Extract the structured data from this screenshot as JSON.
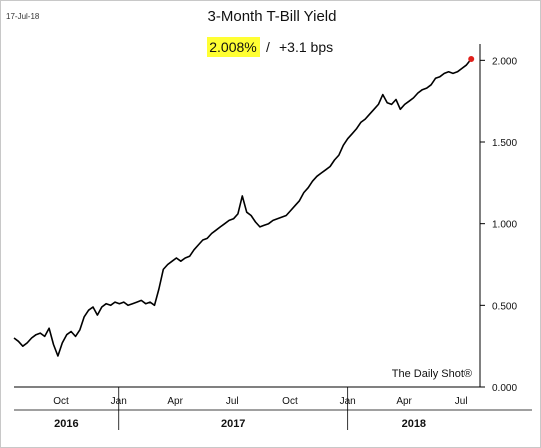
{
  "header": {
    "date": "17-Jul-18",
    "title": "3-Month T-Bill Yield",
    "last_value": "2.008%",
    "separator": "/",
    "change": "+3.1 bps",
    "highlight_color": "#ffff33"
  },
  "source": "The Daily Shot®",
  "chart_data": {
    "type": "line",
    "title": "3-Month T-Bill Yield",
    "xlabel": "",
    "ylabel": "",
    "ylim": [
      0,
      2.1
    ],
    "yticks": [
      0,
      0.5,
      1.0,
      1.5,
      2.0
    ],
    "ytick_labels": [
      "0.000",
      "0.500",
      "1.000",
      "1.500",
      "2.000"
    ],
    "xlim": [
      "2016-07-18",
      "2018-07-31"
    ],
    "xticks": [
      {
        "date": "2016-10-01",
        "label": "Oct"
      },
      {
        "date": "2017-01-01",
        "label": "Jan"
      },
      {
        "date": "2017-04-01",
        "label": "Apr"
      },
      {
        "date": "2017-07-01",
        "label": "Jul"
      },
      {
        "date": "2017-10-01",
        "label": "Oct"
      },
      {
        "date": "2018-01-01",
        "label": "Jan"
      },
      {
        "date": "2018-04-01",
        "label": "Apr"
      },
      {
        "date": "2018-07-01",
        "label": "Jul"
      }
    ],
    "year_labels": [
      {
        "label": "2016",
        "from": "2016-07-18",
        "to": "2017-01-01"
      },
      {
        "label": "2017",
        "from": "2017-01-01",
        "to": "2018-01-01"
      },
      {
        "label": "2018",
        "from": "2018-01-01",
        "to": "2018-07-31"
      }
    ],
    "line_color": "#000000",
    "last_point_color": "#e0201b",
    "grid": false,
    "series": [
      {
        "x": [
          "2016-07-18",
          "2016-07-25",
          "2016-08-01",
          "2016-08-08",
          "2016-08-15",
          "2016-08-22",
          "2016-08-29",
          "2016-09-05",
          "2016-09-12",
          "2016-09-19",
          "2016-09-26",
          "2016-10-03",
          "2016-10-10",
          "2016-10-17",
          "2016-10-24",
          "2016-10-31",
          "2016-11-07",
          "2016-11-14",
          "2016-11-21",
          "2016-11-28",
          "2016-12-05",
          "2016-12-12",
          "2016-12-19",
          "2016-12-26",
          "2017-01-02",
          "2017-01-09",
          "2017-01-16",
          "2017-01-23",
          "2017-01-30",
          "2017-02-06",
          "2017-02-13",
          "2017-02-20",
          "2017-02-27",
          "2017-03-06",
          "2017-03-13",
          "2017-03-20",
          "2017-03-27",
          "2017-04-03",
          "2017-04-10",
          "2017-04-17",
          "2017-04-24",
          "2017-05-01",
          "2017-05-08",
          "2017-05-15",
          "2017-05-22",
          "2017-05-29",
          "2017-06-05",
          "2017-06-12",
          "2017-06-19",
          "2017-06-26",
          "2017-07-03",
          "2017-07-10",
          "2017-07-17",
          "2017-07-24",
          "2017-07-31",
          "2017-08-07",
          "2017-08-14",
          "2017-08-21",
          "2017-08-28",
          "2017-09-04",
          "2017-09-11",
          "2017-09-18",
          "2017-09-25",
          "2017-10-02",
          "2017-10-09",
          "2017-10-16",
          "2017-10-23",
          "2017-10-30",
          "2017-11-06",
          "2017-11-13",
          "2017-11-20",
          "2017-11-27",
          "2017-12-04",
          "2017-12-11",
          "2017-12-18",
          "2017-12-25",
          "2018-01-01",
          "2018-01-08",
          "2018-01-15",
          "2018-01-22",
          "2018-01-29",
          "2018-02-05",
          "2018-02-12",
          "2018-02-19",
          "2018-02-26",
          "2018-03-05",
          "2018-03-12",
          "2018-03-19",
          "2018-03-26",
          "2018-04-02",
          "2018-04-09",
          "2018-04-16",
          "2018-04-23",
          "2018-04-30",
          "2018-05-07",
          "2018-05-14",
          "2018-05-21",
          "2018-05-28",
          "2018-06-04",
          "2018-06-11",
          "2018-06-18",
          "2018-06-25",
          "2018-07-02",
          "2018-07-09",
          "2018-07-17"
        ],
        "y": [
          0.3,
          0.28,
          0.25,
          0.27,
          0.3,
          0.32,
          0.33,
          0.31,
          0.36,
          0.26,
          0.19,
          0.27,
          0.32,
          0.34,
          0.31,
          0.35,
          0.43,
          0.47,
          0.49,
          0.44,
          0.49,
          0.51,
          0.5,
          0.52,
          0.51,
          0.52,
          0.5,
          0.51,
          0.52,
          0.53,
          0.51,
          0.52,
          0.5,
          0.6,
          0.72,
          0.75,
          0.77,
          0.79,
          0.77,
          0.79,
          0.8,
          0.84,
          0.87,
          0.9,
          0.91,
          0.94,
          0.96,
          0.98,
          1.0,
          1.02,
          1.03,
          1.06,
          1.17,
          1.07,
          1.05,
          1.01,
          0.98,
          0.99,
          1.0,
          1.02,
          1.03,
          1.04,
          1.05,
          1.08,
          1.11,
          1.14,
          1.19,
          1.22,
          1.26,
          1.29,
          1.31,
          1.33,
          1.35,
          1.39,
          1.42,
          1.48,
          1.52,
          1.55,
          1.58,
          1.62,
          1.64,
          1.67,
          1.7,
          1.73,
          1.79,
          1.74,
          1.73,
          1.76,
          1.7,
          1.73,
          1.75,
          1.77,
          1.8,
          1.82,
          1.83,
          1.85,
          1.89,
          1.9,
          1.92,
          1.93,
          1.92,
          1.93,
          1.95,
          1.97,
          2.008
        ]
      }
    ]
  }
}
